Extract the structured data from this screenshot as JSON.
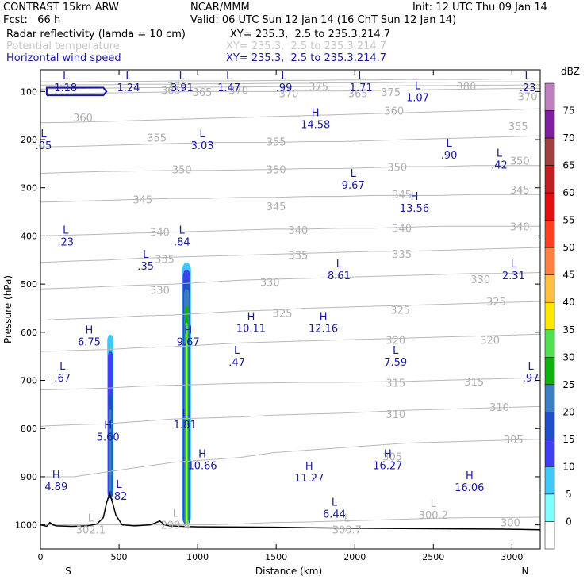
{
  "header": {
    "model": "CONTRAST 15km ARW",
    "org": "NCAR/MMM",
    "init": "Init: 12 UTC Thu 09 Jan 14",
    "fcst": "Fcst:   66 h",
    "valid": "Valid: 06 UTC Sun 12 Jan 14 (16 ChT Sun 12 Jan 14)",
    "fields": [
      {
        "name": "Radar reflectivity (lamda = 10 cm)",
        "xy": "XY= 235.3,  2.5 to 235.3,214.7",
        "style": "black"
      },
      {
        "name": "Potential temperature",
        "xy": "XY= 235.3,  2.5 to 235.3,214.7",
        "style": "grey"
      },
      {
        "name": "Horizontal wind speed",
        "xy": "XY= 235.3,  2.5 to 235.3,214.7",
        "style": "blue"
      }
    ]
  },
  "chart_data": {
    "type": "cross-section",
    "xlabel": "Distance (km)",
    "ylabel": "Pressure (hPa)",
    "xlim": [
      0,
      3180
    ],
    "ylim": [
      1050,
      55
    ],
    "xticks": [
      0,
      500,
      1000,
      1500,
      2000,
      2500,
      3000
    ],
    "yticks": [
      100,
      200,
      300,
      400,
      500,
      600,
      700,
      800,
      900,
      1000
    ],
    "x_end_labels": {
      "left": "S",
      "right": "N"
    },
    "colorbar": {
      "unit": "dBZ",
      "levels": [
        0,
        5,
        10,
        15,
        20,
        25,
        30,
        35,
        40,
        45,
        50,
        55,
        60,
        65,
        70,
        75
      ],
      "colors": [
        "#ffffff",
        "#80ffff",
        "#3fc8f8",
        "#4040f0",
        "#2050c8",
        "#3a80c0",
        "#10b010",
        "#50e050",
        "#ffe800",
        "#ffc040",
        "#ff8040",
        "#ff4020",
        "#e01010",
        "#c02020",
        "#a04040",
        "#8020a0",
        "#c080c0"
      ]
    },
    "theta_contours": [
      {
        "value": 300,
        "p": [
          1000,
          1000,
          1000,
          1000,
          1000,
          1000,
          998,
          995,
          994,
          992,
          990,
          988,
          986,
          985,
          985,
          984
        ]
      },
      {
        "value": 305,
        "p": [
          900,
          900,
          890,
          880,
          870,
          865,
          860,
          850,
          845,
          840,
          835,
          830,
          828,
          826,
          824,
          822
        ]
      },
      {
        "value": 310,
        "p": [
          795,
          792,
          790,
          785,
          780,
          778,
          776,
          772,
          770,
          768,
          765,
          762,
          760,
          758,
          756,
          754
        ]
      },
      {
        "value": 315,
        "p": [
          720,
          718,
          716,
          712,
          710,
          708,
          706,
          705,
          704,
          704,
          703,
          702,
          700,
          698,
          696,
          694
        ]
      },
      {
        "value": 320,
        "p": [
          640,
          638,
          636,
          632,
          630,
          626,
          622,
          620,
          618,
          616,
          614,
          612,
          610,
          608,
          606,
          604
        ]
      },
      {
        "value": 325,
        "p": [
          575,
          572,
          570,
          566,
          564,
          560,
          556,
          554,
          550,
          548,
          546,
          544,
          542,
          540,
          538,
          536
        ]
      },
      {
        "value": 330,
        "p": [
          510,
          508,
          505,
          502,
          500,
          496,
          492,
          490,
          488,
          486,
          484,
          482,
          480,
          478,
          478,
          476
        ]
      },
      {
        "value": 335,
        "p": [
          455,
          452,
          450,
          446,
          444,
          442,
          440,
          438,
          436,
          434,
          432,
          432,
          430,
          428,
          426,
          424
        ]
      },
      {
        "value": 340,
        "p": [
          400,
          398,
          396,
          394,
          392,
          390,
          388,
          386,
          386,
          384,
          384,
          382,
          380,
          380,
          380,
          380
        ]
      },
      {
        "value": 345,
        "p": [
          330,
          328,
          326,
          324,
          322,
          322,
          320,
          320,
          318,
          318,
          316,
          316,
          316,
          314,
          314,
          314
        ]
      },
      {
        "value": 350,
        "p": [
          270,
          268,
          266,
          265,
          264,
          264,
          263,
          262,
          260,
          260,
          258,
          256,
          256,
          254,
          254,
          254
        ]
      },
      {
        "value": 355,
        "p": [
          215,
          214,
          212,
          210,
          208,
          206,
          206,
          206,
          204,
          204,
          202,
          200,
          198,
          196,
          194,
          192
        ]
      },
      {
        "value": 360,
        "p": [
          165,
          164,
          162,
          160,
          158,
          156,
          154,
          152,
          150,
          148,
          146,
          144,
          142,
          140,
          138,
          136
        ]
      },
      {
        "value": 365,
        "p": [
          105,
          104,
          103,
          102,
          101,
          100,
          100,
          100,
          99,
          99,
          98,
          97,
          96,
          95,
          94,
          94
        ]
      },
      {
        "value": 370,
        "p": [
          95,
          94,
          93,
          92,
          92,
          91,
          91,
          90,
          90,
          89,
          89,
          88,
          88,
          87,
          87,
          86
        ]
      },
      {
        "value": 375,
        "p": [
          87,
          86,
          86,
          85,
          85,
          84,
          84,
          83,
          83,
          82,
          82,
          81,
          81,
          80,
          80,
          80
        ]
      },
      {
        "value": 380,
        "p": [
          80,
          80,
          79,
          79,
          78,
          78,
          78,
          77,
          77,
          76,
          76,
          75,
          75,
          75,
          74,
          74
        ]
      }
    ],
    "theta_labels": [
      {
        "t": "375",
        "x": 870,
        "p": 89
      },
      {
        "t": "365",
        "x": 830,
        "p": 97
      },
      {
        "t": "370",
        "x": 1260,
        "p": 97
      },
      {
        "t": "375",
        "x": 1770,
        "p": 90
      },
      {
        "t": "380",
        "x": 2710,
        "p": 90
      },
      {
        "t": "370",
        "x": 1580,
        "p": 104
      },
      {
        "t": "365",
        "x": 2020,
        "p": 104
      },
      {
        "t": "370",
        "x": 3100,
        "p": 110
      },
      {
        "t": "365",
        "x": 1030,
        "p": 101
      },
      {
        "t": "375",
        "x": 2230,
        "p": 101
      },
      {
        "t": "360",
        "x": 270,
        "p": 154
      },
      {
        "t": "360",
        "x": 2250,
        "p": 140
      },
      {
        "t": "355",
        "x": 3040,
        "p": 172
      },
      {
        "t": "355",
        "x": 740,
        "p": 196
      },
      {
        "t": "355",
        "x": 1500,
        "p": 204
      },
      {
        "t": "350",
        "x": 900,
        "p": 262
      },
      {
        "t": "350",
        "x": 1500,
        "p": 262
      },
      {
        "t": "350",
        "x": 2270,
        "p": 257
      },
      {
        "t": "350",
        "x": 3050,
        "p": 244
      },
      {
        "t": "345",
        "x": 650,
        "p": 324
      },
      {
        "t": "345",
        "x": 1500,
        "p": 338
      },
      {
        "t": "345",
        "x": 2300,
        "p": 314
      },
      {
        "t": "345",
        "x": 3050,
        "p": 304
      },
      {
        "t": "340",
        "x": 760,
        "p": 392
      },
      {
        "t": "340",
        "x": 1640,
        "p": 388
      },
      {
        "t": "340",
        "x": 2300,
        "p": 384
      },
      {
        "t": "340",
        "x": 3050,
        "p": 380
      },
      {
        "t": "335",
        "x": 790,
        "p": 448
      },
      {
        "t": "335",
        "x": 1640,
        "p": 440
      },
      {
        "t": "335",
        "x": 2300,
        "p": 437
      },
      {
        "t": "330",
        "x": 760,
        "p": 512
      },
      {
        "t": "330",
        "x": 1460,
        "p": 496
      },
      {
        "t": "330",
        "x": 2800,
        "p": 490
      },
      {
        "t": "325",
        "x": 1540,
        "p": 560
      },
      {
        "t": "325",
        "x": 2290,
        "p": 553
      },
      {
        "t": "325",
        "x": 2900,
        "p": 536
      },
      {
        "t": "320",
        "x": 2260,
        "p": 616
      },
      {
        "t": "320",
        "x": 2860,
        "p": 616
      },
      {
        "t": "315",
        "x": 2260,
        "p": 705
      },
      {
        "t": "315",
        "x": 2760,
        "p": 702
      },
      {
        "t": "310",
        "x": 2260,
        "p": 770
      },
      {
        "t": "310",
        "x": 2920,
        "p": 755
      },
      {
        "t": "305",
        "x": 2240,
        "p": 858
      },
      {
        "t": "305",
        "x": 3010,
        "p": 823
      },
      {
        "t": "300",
        "x": 2990,
        "p": 995
      }
    ],
    "wind_labels": [
      {
        "k": "L",
        "v": "1.18",
        "x": 160,
        "p": 80
      },
      {
        "k": "L",
        "v": "1.24",
        "x": 560,
        "p": 80
      },
      {
        "k": "L",
        "v": "3.91",
        "x": 900,
        "p": 80
      },
      {
        "k": "L",
        "v": "1.47",
        "x": 1200,
        "p": 80
      },
      {
        "k": "L",
        "v": ".99",
        "x": 1550,
        "p": 80
      },
      {
        "k": "L",
        "v": "1.71",
        "x": 2040,
        "p": 80
      },
      {
        "k": "L",
        "v": ".23",
        "x": 3100,
        "p": 80
      },
      {
        "k": "L",
        "v": "1.07",
        "x": 2400,
        "p": 100
      },
      {
        "k": "H",
        "v": "14.58",
        "x": 1750,
        "p": 156
      },
      {
        "k": "L",
        "v": "3.03",
        "x": 1030,
        "p": 200
      },
      {
        "k": "L",
        "v": ".05",
        "x": 20,
        "p": 200
      },
      {
        "k": "L",
        "v": ".90",
        "x": 2600,
        "p": 220
      },
      {
        "k": "L",
        "v": ".42",
        "x": 2920,
        "p": 240
      },
      {
        "k": "L",
        "v": "9.67",
        "x": 1990,
        "p": 282
      },
      {
        "k": "H",
        "v": "13.56",
        "x": 2380,
        "p": 330
      },
      {
        "k": "L",
        "v": ".23",
        "x": 160,
        "p": 400
      },
      {
        "k": "L",
        "v": ".84",
        "x": 900,
        "p": 400
      },
      {
        "k": "L",
        "v": ".35",
        "x": 670,
        "p": 450
      },
      {
        "k": "L",
        "v": "8.61",
        "x": 1900,
        "p": 470
      },
      {
        "k": "L",
        "v": "2.31",
        "x": 3010,
        "p": 470
      },
      {
        "k": "H",
        "v": "10.11",
        "x": 1340,
        "p": 580
      },
      {
        "k": "H",
        "v": "12.16",
        "x": 1800,
        "p": 580
      },
      {
        "k": "H",
        "v": "6.75",
        "x": 310,
        "p": 608
      },
      {
        "k": "H",
        "v": "9.67",
        "x": 940,
        "p": 608
      },
      {
        "k": "L",
        "v": ".47",
        "x": 1250,
        "p": 650
      },
      {
        "k": "L",
        "v": "7.59",
        "x": 2260,
        "p": 650
      },
      {
        "k": "L",
        "v": ".67",
        "x": 140,
        "p": 683
      },
      {
        "k": "L",
        "v": ".97",
        "x": 3120,
        "p": 683
      },
      {
        "k": "L",
        "v": "1.81",
        "x": 920,
        "p": 780
      },
      {
        "k": "H",
        "v": "5.60",
        "x": 430,
        "p": 805
      },
      {
        "k": "H",
        "v": "10.66",
        "x": 1030,
        "p": 865
      },
      {
        "k": "H",
        "v": "16.27",
        "x": 2210,
        "p": 865
      },
      {
        "k": "H",
        "v": "11.27",
        "x": 1710,
        "p": 890
      },
      {
        "k": "H",
        "v": "16.06",
        "x": 2730,
        "p": 910
      },
      {
        "k": "H",
        "v": "4.89",
        "x": 100,
        "p": 908
      },
      {
        "k": "L",
        "v": ".82",
        "x": 500,
        "p": 928
      },
      {
        "k": "L",
        "v": "6.44",
        "x": 1870,
        "p": 965
      }
    ],
    "theta_lowlabels": [
      {
        "k": "L",
        "v": "302.1",
        "x": 320,
        "p": 998
      },
      {
        "k": "L",
        "v": "299.4",
        "x": 860,
        "p": 988
      },
      {
        "k": "L",
        "v": "300.7",
        "x": 1950,
        "p": 998
      },
      {
        "k": "L",
        "v": "300.2",
        "x": 2500,
        "p": 968
      }
    ],
    "wind_max_contours": [
      {
        "x": [
          40,
          400,
          420,
          400,
          40,
          40
        ],
        "p": [
          108,
          108,
          100,
          92,
          92,
          108
        ]
      }
    ],
    "reflectivity_columns": [
      {
        "x": 445,
        "bands": [
          {
            "dbz": 5,
            "w": 40,
            "top": 605,
            "bot": 945
          },
          {
            "dbz": 10,
            "w": 32,
            "top": 640,
            "bot": 945
          },
          {
            "dbz": 15,
            "w": 22,
            "top": 730,
            "bot": 945
          },
          {
            "dbz": 20,
            "w": 14,
            "top": 760,
            "bot": 930
          }
        ]
      },
      {
        "x": 930,
        "bands": [
          {
            "dbz": 5,
            "w": 56,
            "top": 455,
            "bot": 1000
          },
          {
            "dbz": 10,
            "w": 48,
            "top": 470,
            "bot": 1000
          },
          {
            "dbz": 15,
            "w": 40,
            "top": 490,
            "bot": 1000
          },
          {
            "dbz": 20,
            "w": 32,
            "top": 510,
            "bot": 1000
          },
          {
            "dbz": 25,
            "w": 24,
            "top": 545,
            "bot": 1000
          },
          {
            "dbz": 30,
            "w": 16,
            "top": 580,
            "bot": 1000
          },
          {
            "dbz": 35,
            "w": 6,
            "top": 620,
            "bot": 1000
          }
        ]
      }
    ],
    "terrain": {
      "x": [
        0,
        40,
        60,
        80,
        100,
        200,
        300,
        360,
        400,
        420,
        440,
        460,
        480,
        520,
        600,
        700,
        760,
        790,
        820,
        900,
        1000,
        1500,
        2000,
        2500,
        3000,
        3180
      ],
      "p": [
        1000,
        1003,
        995,
        1000,
        1002,
        1003,
        1002,
        998,
        985,
        955,
        935,
        955,
        980,
        1000,
        1002,
        1000,
        992,
        1000,
        1002,
        1003,
        1004,
        1005,
        1007,
        1008,
        1009,
        1010
      ]
    }
  }
}
